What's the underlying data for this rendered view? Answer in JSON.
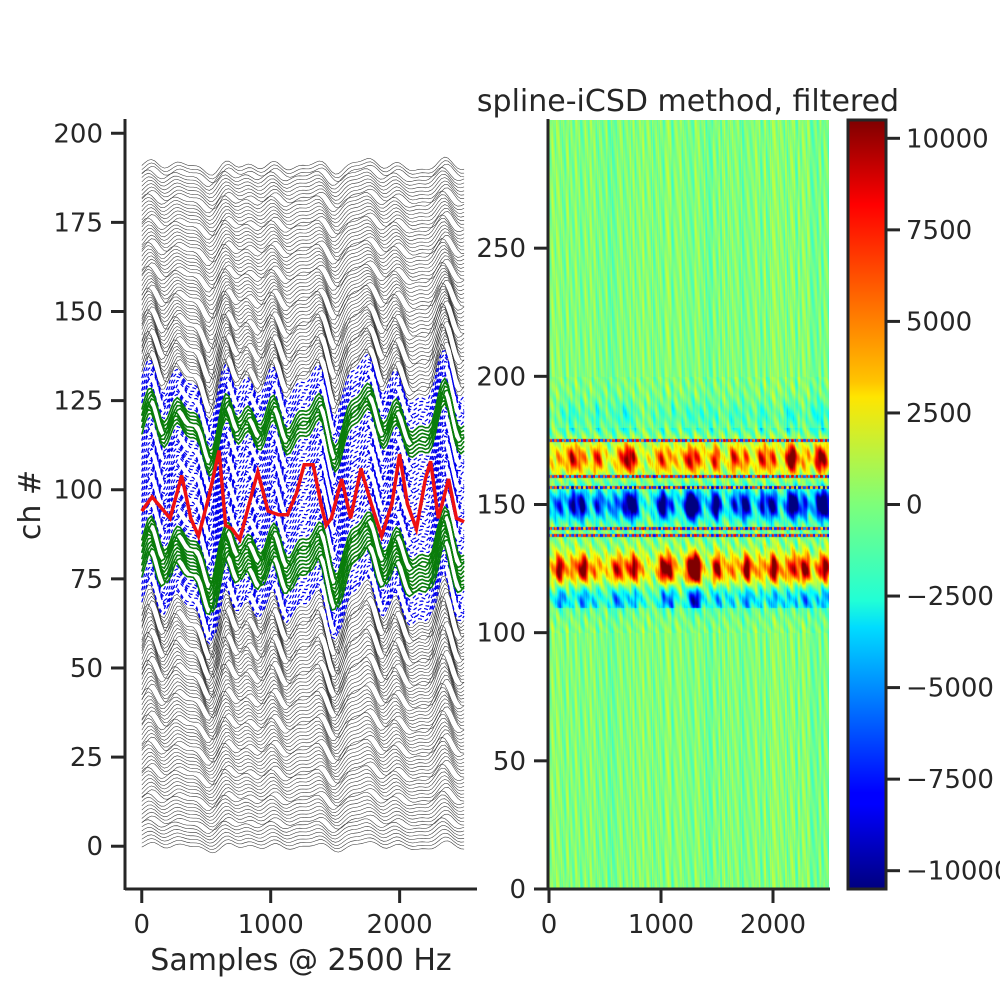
{
  "chart_data": [
    {
      "type": "line",
      "title": "",
      "xlabel": "Samples @ 2500 Hz",
      "ylabel": "ch #",
      "xlim": [
        -130,
        2600
      ],
      "ylim": [
        -12,
        204
      ],
      "xticks": [
        0,
        1000,
        2000
      ],
      "yticks": [
        0,
        25,
        50,
        75,
        100,
        125,
        150,
        175,
        200
      ],
      "n_channels": 192,
      "channel_spacing": 1,
      "n_samples": 2500,
      "grid": false,
      "series": [
        {
          "style": "gray-solid",
          "channels": "0-67, 131-191"
        },
        {
          "style": "blue-dashed",
          "channels": "68-130"
        },
        {
          "style": "green-solid",
          "channels": "76-86, 115-122"
        },
        {
          "style": "red-solid",
          "channels": "95"
        }
      ],
      "waveform": {
        "gains": [
          {
            "ch": 0,
            "gain": 1.0
          },
          {
            "ch": 40,
            "gain": 3.0
          },
          {
            "ch": 68,
            "gain": 6.0
          },
          {
            "ch": 130,
            "gain": 6.0
          },
          {
            "ch": 160,
            "gain": 2.5
          },
          {
            "ch": 191,
            "gain": 1.5
          }
        ],
        "red_trace": [
          [
            0,
            94
          ],
          [
            80,
            98
          ],
          [
            150,
            95
          ],
          [
            220,
            92
          ],
          [
            310,
            104
          ],
          [
            380,
            92
          ],
          [
            440,
            87
          ],
          [
            520,
            98
          ],
          [
            600,
            111
          ],
          [
            650,
            90
          ],
          [
            700,
            89
          ],
          [
            760,
            86
          ],
          [
            840,
            97
          ],
          [
            900,
            105
          ],
          [
            980,
            94
          ],
          [
            1060,
            93
          ],
          [
            1130,
            93
          ],
          [
            1200,
            99
          ],
          [
            1260,
            107
          ],
          [
            1330,
            107
          ],
          [
            1390,
            96
          ],
          [
            1430,
            90
          ],
          [
            1470,
            92
          ],
          [
            1550,
            103
          ],
          [
            1620,
            92
          ],
          [
            1700,
            106
          ],
          [
            1780,
            96
          ],
          [
            1860,
            87
          ],
          [
            1940,
            96
          ],
          [
            2000,
            110
          ],
          [
            2060,
            96
          ],
          [
            2130,
            89
          ],
          [
            2200,
            103
          ],
          [
            2240,
            108
          ],
          [
            2300,
            92
          ],
          [
            2380,
            103
          ],
          [
            2440,
            92
          ],
          [
            2500,
            91
          ]
        ]
      }
    },
    {
      "type": "heatmap",
      "title": "spline-iCSD method, filtered",
      "xlabel": "",
      "ylabel": "",
      "xlim": [
        0,
        2500
      ],
      "ylim": [
        0,
        300
      ],
      "xticks": [
        0,
        1000,
        2000
      ],
      "yticks": [
        0,
        50,
        100,
        150,
        200,
        250
      ],
      "colormap": "jet",
      "colorbar": {
        "vmin": -10500,
        "vmax": 10500,
        "ticks": [
          10000,
          7500,
          5000,
          2500,
          0,
          -2500,
          -5000,
          -7500,
          -10000
        ],
        "tick_labels": [
          "10000",
          "7500",
          "5000",
          "2500",
          "0",
          "−2500",
          "−5000",
          "−7500",
          "−10000"
        ]
      },
      "features": {
        "activity_band": [
          100,
          200
        ],
        "strong_band": [
          110,
          180
        ],
        "band_centers": [
          {
            "depth": 125,
            "amplitude": 1.0
          },
          {
            "depth": 150,
            "amplitude": -1.1
          },
          {
            "depth": 168,
            "amplitude": 0.8
          },
          {
            "depth": 185,
            "amplitude": -0.45
          },
          {
            "depth": 113,
            "amplitude": -0.5
          }
        ],
        "horizontal_lines": [
          138,
          141,
          157,
          161,
          175
        ],
        "event_columns": [
          100,
          200,
          300,
          420,
          610,
          680,
          750,
          1010,
          1090,
          1250,
          1300,
          1330,
          1490,
          1640,
          1760,
          1890,
          2000,
          2130,
          2180,
          2290,
          2400,
          2460
        ]
      }
    }
  ]
}
